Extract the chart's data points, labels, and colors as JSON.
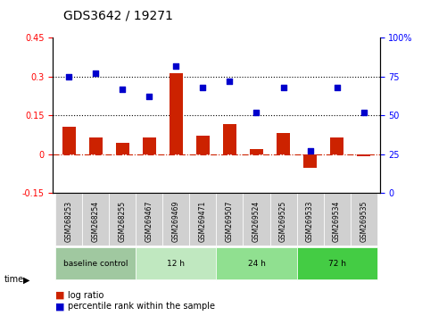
{
  "title": "GDS3642 / 19271",
  "samples": [
    "GSM268253",
    "GSM268254",
    "GSM268255",
    "GSM269467",
    "GSM269469",
    "GSM269471",
    "GSM269507",
    "GSM269524",
    "GSM269525",
    "GSM269533",
    "GSM269534",
    "GSM269535"
  ],
  "log_ratio": [
    0.105,
    0.065,
    0.042,
    0.065,
    0.315,
    0.07,
    0.115,
    0.018,
    0.08,
    -0.055,
    0.065,
    -0.01
  ],
  "percentile_rank": [
    75,
    77,
    67,
    62,
    82,
    68,
    72,
    52,
    68,
    27,
    68,
    52
  ],
  "groups": [
    {
      "label": "baseline control",
      "start": 0,
      "end": 3,
      "color": "#90EE90"
    },
    {
      "label": "12 h",
      "start": 3,
      "end": 6,
      "color": "#90EE90"
    },
    {
      "label": "24 h",
      "start": 6,
      "end": 9,
      "color": "#90EE90"
    },
    {
      "label": "72 h",
      "start": 9,
      "end": 12,
      "color": "#00CC44"
    }
  ],
  "group_colors": [
    "#b0d0b0",
    "#c8ecc8",
    "#a8e8a8",
    "#44dd44"
  ],
  "ylim_left": [
    -0.15,
    0.45
  ],
  "ylim_right": [
    0,
    100
  ],
  "yticks_left": [
    -0.15,
    0.0,
    0.15,
    0.3,
    0.45
  ],
  "yticks_right": [
    0,
    25,
    50,
    75,
    100
  ],
  "hlines": [
    0.15,
    0.3
  ],
  "bar_color": "#CC2200",
  "dot_color": "#0000CC",
  "zero_line_color": "#CC2200",
  "bg_color": "#ffffff"
}
